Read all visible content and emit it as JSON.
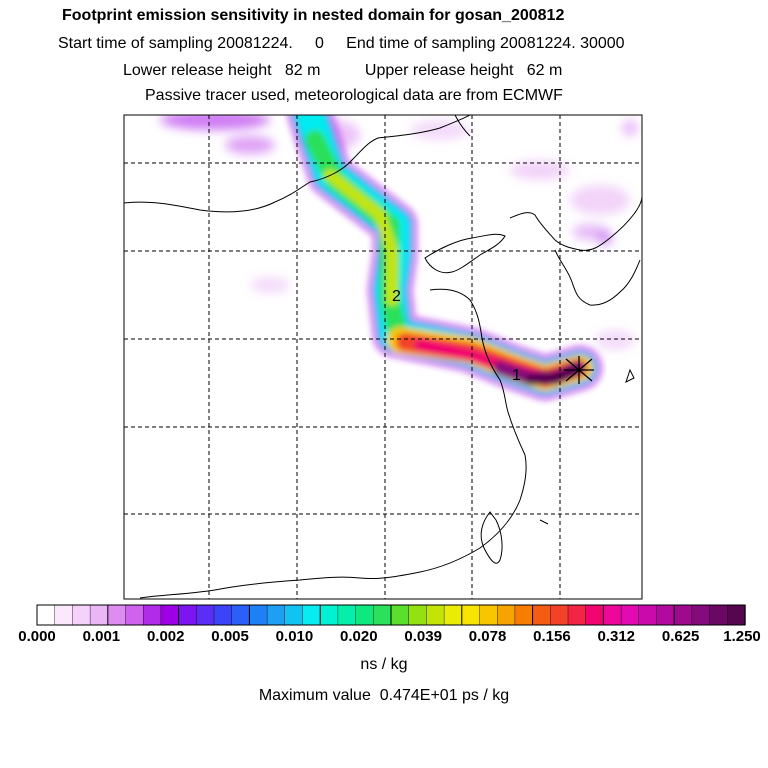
{
  "header": {
    "title": "Footprint emission sensitivity in nested domain for gosan_200812",
    "sampling": "Start time of sampling 20081224.     0     End time of sampling 20081224. 30000",
    "release": "Lower release height   82 m          Upper release height   62 m",
    "tracer": "Passive tracer used, meteorological data are from ECMWF"
  },
  "map": {
    "plume_labels": [
      "1",
      "2"
    ],
    "receptor_marker": "x-star-icon"
  },
  "colorbar": {
    "tick_labels": [
      "0.000",
      "0.001",
      "0.002",
      "0.005",
      "0.010",
      "0.020",
      "0.039",
      "0.078",
      "0.156",
      "0.312",
      "0.625",
      "1.250"
    ],
    "colors": [
      "#ffffff",
      "#fbe8fc",
      "#f6d2fa",
      "#eab7f5",
      "#dd8cf1",
      "#d063ee",
      "#b12ce8",
      "#9e00e5",
      "#7c15f0",
      "#5a2ef5",
      "#3c44f7",
      "#2a60f7",
      "#1f7ff5",
      "#1d9ff3",
      "#10c3f1",
      "#06ecf0",
      "#01f2d2",
      "#05efaa",
      "#0fe87f",
      "#2be05a",
      "#5bde2c",
      "#94e10f",
      "#c2e507",
      "#eaec06",
      "#f7e400",
      "#f7c600",
      "#f6a400",
      "#f57e00",
      "#f45c14",
      "#f24329",
      "#f22546",
      "#f0066e",
      "#ed089a",
      "#e10ab3",
      "#cb0aac",
      "#b10a9e",
      "#9d0a8e",
      "#850a7b",
      "#6b0863",
      "#55064f"
    ],
    "units": "ns / kg"
  },
  "footer": {
    "max_value": "Maximum value  0.474E+01 ps / kg"
  }
}
